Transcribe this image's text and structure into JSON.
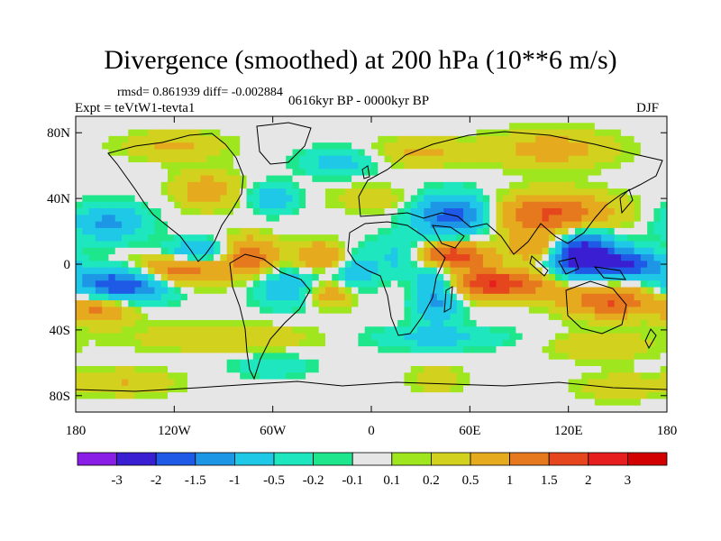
{
  "chart_data": {
    "type": "heatmap",
    "title": "Divergence (smoothed) at 200 hPa (10**6 m/s)",
    "stats_label": "rmsd= 0.861939 diff= -0.002884",
    "experiment_label": "Expt = teVtW1-tevta1",
    "period_label": "0616kyr BP - 0000kyr BP",
    "season_label": "DJF",
    "xlim": [
      -180,
      180
    ],
    "ylim": [
      -90,
      90
    ],
    "x_ticks": [
      {
        "value": -180,
        "label": "180"
      },
      {
        "value": -120,
        "label": "120W"
      },
      {
        "value": -60,
        "label": "60W"
      },
      {
        "value": 0,
        "label": "0"
      },
      {
        "value": 60,
        "label": "60E"
      },
      {
        "value": 120,
        "label": "120E"
      },
      {
        "value": 180,
        "label": "180"
      }
    ],
    "y_ticks": [
      {
        "value": 80,
        "label": "80N"
      },
      {
        "value": 40,
        "label": "40N"
      },
      {
        "value": 0,
        "label": "0"
      },
      {
        "value": -40,
        "label": "40S"
      },
      {
        "value": -80,
        "label": "80S"
      }
    ],
    "colorbar": {
      "levels": [
        "-3",
        "-2",
        "-1.5",
        "-1",
        "-0.5",
        "-0.2",
        "-0.1",
        "0.1",
        "0.2",
        "0.5",
        "1",
        "1.5",
        "2",
        "3"
      ],
      "colors": [
        "#8a1ee6",
        "#3a1ed2",
        "#1e5ae6",
        "#1e96e6",
        "#1ec8e6",
        "#1ee6be",
        "#1ee68c",
        "#e6e6e6",
        "#a0e61e",
        "#d2d21e",
        "#e6aa1e",
        "#e6781e",
        "#e6461e",
        "#e61e1e",
        "#d20000"
      ]
    },
    "field_features": [
      {
        "lon": -150,
        "lat": -12,
        "sx": 22,
        "sy": 7,
        "value": -2.2
      },
      {
        "lon": -160,
        "lat": 25,
        "sx": 16,
        "sy": 8,
        "value": -1.1
      },
      {
        "lon": -120,
        "lat": -5,
        "sx": 20,
        "sy": 7,
        "value": 1.6
      },
      {
        "lon": -165,
        "lat": -28,
        "sx": 14,
        "sy": 6,
        "value": 1.1
      },
      {
        "lon": -105,
        "lat": 8,
        "sx": 14,
        "sy": 5,
        "value": -1.2
      },
      {
        "lon": -75,
        "lat": 5,
        "sx": 12,
        "sy": 8,
        "value": 1.4
      },
      {
        "lon": -50,
        "lat": -15,
        "sx": 14,
        "sy": 8,
        "value": -1.0
      },
      {
        "lon": -30,
        "lat": 5,
        "sx": 12,
        "sy": 6,
        "value": 1.1
      },
      {
        "lon": -25,
        "lat": -18,
        "sx": 12,
        "sy": 6,
        "value": 1.0
      },
      {
        "lon": -10,
        "lat": -5,
        "sx": 10,
        "sy": 10,
        "value": -0.8
      },
      {
        "lon": 20,
        "lat": 5,
        "sx": 12,
        "sy": 8,
        "value": -1.1
      },
      {
        "lon": 40,
        "lat": -15,
        "sx": 10,
        "sy": 14,
        "value": -1.4
      },
      {
        "lon": 50,
        "lat": 30,
        "sx": 16,
        "sy": 9,
        "value": -1.8
      },
      {
        "lon": 45,
        "lat": 5,
        "sx": 18,
        "sy": 6,
        "value": 2.2
      },
      {
        "lon": 75,
        "lat": -12,
        "sx": 24,
        "sy": 6,
        "value": 2.0
      },
      {
        "lon": 110,
        "lat": 30,
        "sx": 26,
        "sy": 9,
        "value": 1.6
      },
      {
        "lon": 130,
        "lat": 5,
        "sx": 14,
        "sy": 10,
        "value": -2.8
      },
      {
        "lon": 160,
        "lat": 0,
        "sx": 12,
        "sy": 6,
        "value": -1.8
      },
      {
        "lon": 145,
        "lat": -22,
        "sx": 20,
        "sy": 7,
        "value": 1.6
      },
      {
        "lon": 100,
        "lat": 10,
        "sx": 10,
        "sy": 6,
        "value": 1.0
      },
      {
        "lon": -100,
        "lat": 45,
        "sx": 14,
        "sy": 8,
        "value": 0.8
      },
      {
        "lon": -120,
        "lat": 72,
        "sx": 22,
        "sy": 6,
        "value": 0.6
      },
      {
        "lon": -20,
        "lat": 62,
        "sx": 16,
        "sy": 6,
        "value": -0.7
      },
      {
        "lon": 30,
        "lat": 68,
        "sx": 20,
        "sy": 6,
        "value": 0.6
      },
      {
        "lon": 110,
        "lat": 70,
        "sx": 28,
        "sy": 8,
        "value": 0.7
      },
      {
        "lon": -60,
        "lat": 40,
        "sx": 10,
        "sy": 6,
        "value": -0.9
      },
      {
        "lon": 0,
        "lat": 40,
        "sx": 18,
        "sy": 6,
        "value": 0.4
      },
      {
        "lon": -90,
        "lat": -45,
        "sx": 40,
        "sy": 6,
        "value": 0.5
      },
      {
        "lon": 40,
        "lat": -45,
        "sx": 30,
        "sy": 5,
        "value": -0.6
      },
      {
        "lon": 140,
        "lat": -50,
        "sx": 22,
        "sy": 6,
        "value": 0.5
      },
      {
        "lon": -150,
        "lat": -72,
        "sx": 22,
        "sy": 6,
        "value": 0.5
      },
      {
        "lon": 40,
        "lat": -70,
        "sx": 12,
        "sy": 6,
        "value": 0.4
      },
      {
        "lon": 150,
        "lat": -75,
        "sx": 18,
        "sy": 6,
        "value": 0.4
      },
      {
        "lon": -60,
        "lat": -62,
        "sx": 16,
        "sy": 5,
        "value": -0.5
      }
    ]
  }
}
